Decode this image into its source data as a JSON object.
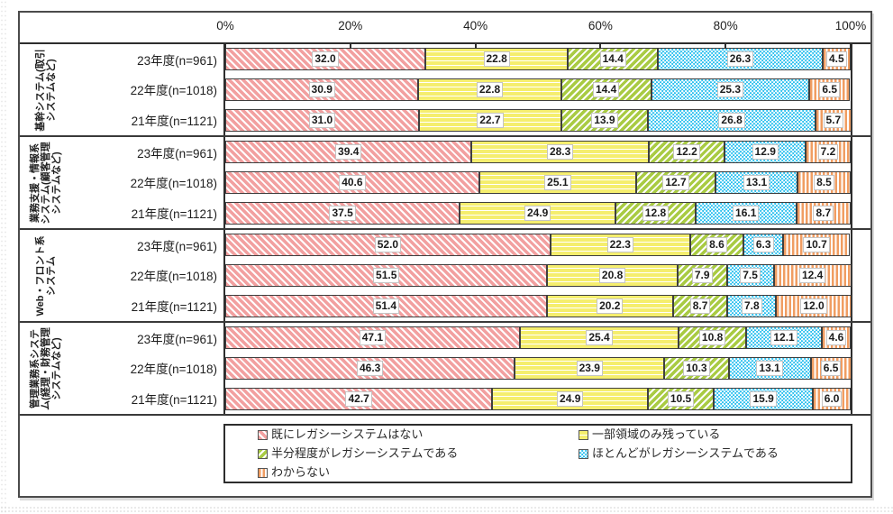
{
  "colors": {
    "no_legacy_pink": "#f2a0a0",
    "partial_yellow": "#f5ee6e",
    "half_green": "#a9cb43",
    "mostly_blue": "#2fc1ef",
    "unknown_orange": "#f09d62",
    "border_dark": "#2d2d2d"
  },
  "chart_data": {
    "type": "bar",
    "orientation": "horizontal-stacked",
    "unit": "%",
    "xlim": [
      0,
      100
    ],
    "x_ticks": [
      "0%",
      "20%",
      "40%",
      "60%",
      "80%",
      "100%"
    ],
    "grid": false,
    "legend_position": "bottom",
    "series": [
      {
        "name": "既にレガシーシステムはない",
        "color": "#f2a0a0",
        "pattern": "diagonal-down-stripes"
      },
      {
        "name": "一部領域のみ残っている",
        "color": "#f5ee6e",
        "pattern": "horizontal-lines"
      },
      {
        "name": "半分程度がレガシーシステムである",
        "color": "#a9cb43",
        "pattern": "diagonal-up-stripes"
      },
      {
        "name": "ほとんどがレガシーシステムである",
        "color": "#2fc1ef",
        "pattern": "white-dots"
      },
      {
        "name": "わからない",
        "color": "#f09d62",
        "pattern": "vertical-stripes"
      }
    ],
    "groups": [
      {
        "category": "基幹システム(取引システムなど)",
        "rows": [
          {
            "label": "23年度(n=961)",
            "values": [
              32.0,
              22.8,
              14.4,
              26.3,
              4.5
            ]
          },
          {
            "label": "22年度(n=1018)",
            "values": [
              30.9,
              22.8,
              14.4,
              25.3,
              6.5
            ]
          },
          {
            "label": "21年度(n=1121)",
            "values": [
              31.0,
              22.7,
              13.9,
              26.8,
              5.7
            ]
          }
        ]
      },
      {
        "category": "業務支援・情報系システム(顧客管理システムなど)",
        "rows": [
          {
            "label": "23年度(n=961)",
            "values": [
              39.4,
              28.3,
              12.2,
              12.9,
              7.2
            ]
          },
          {
            "label": "22年度(n=1018)",
            "values": [
              40.6,
              25.1,
              12.7,
              13.1,
              8.5
            ]
          },
          {
            "label": "21年度(n=1121)",
            "values": [
              37.5,
              24.9,
              12.8,
              16.1,
              8.7
            ]
          }
        ]
      },
      {
        "category": "Web・フロント系システム",
        "rows": [
          {
            "label": "23年度(n=961)",
            "values": [
              52.0,
              22.3,
              8.6,
              6.3,
              10.7
            ]
          },
          {
            "label": "22年度(n=1018)",
            "values": [
              51.5,
              20.8,
              7.9,
              7.5,
              12.4
            ]
          },
          {
            "label": "21年度(n=1121)",
            "values": [
              51.4,
              20.2,
              8.7,
              7.8,
              12.0
            ]
          }
        ]
      },
      {
        "category": "管理業務系システム(経理・財務管理システムなど)",
        "rows": [
          {
            "label": "23年度(n=961)",
            "values": [
              47.1,
              25.4,
              10.8,
              12.1,
              4.6
            ]
          },
          {
            "label": "22年度(n=1018)",
            "values": [
              46.3,
              23.9,
              10.3,
              13.1,
              6.5
            ]
          },
          {
            "label": "21年度(n=1121)",
            "values": [
              42.7,
              24.9,
              10.5,
              15.9,
              6.0
            ]
          }
        ]
      }
    ]
  }
}
